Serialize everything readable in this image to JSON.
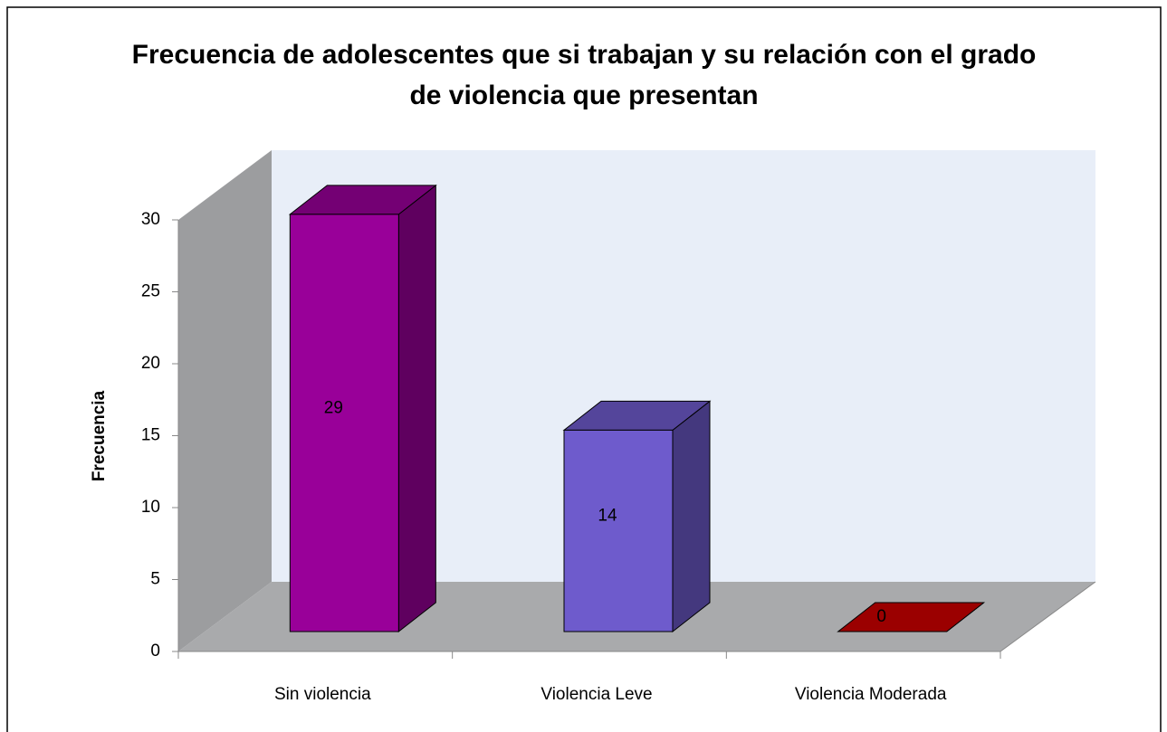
{
  "chart_data": {
    "type": "bar3d",
    "title": "Frecuencia de adolescentes que si trabajan y su relación con el grado de violencia que presentan",
    "y_label": "Frecuencia",
    "categories": [
      "Sin violencia",
      "Violencia Leve",
      "Violencia Moderada"
    ],
    "values": [
      29,
      14,
      0
    ],
    "colors": [
      "#990099",
      "#6e5bcc",
      "#cc0000"
    ],
    "ylim": [
      0,
      30
    ],
    "yticks": [
      0,
      5,
      10,
      15,
      20,
      25,
      30
    ],
    "grid": false
  }
}
